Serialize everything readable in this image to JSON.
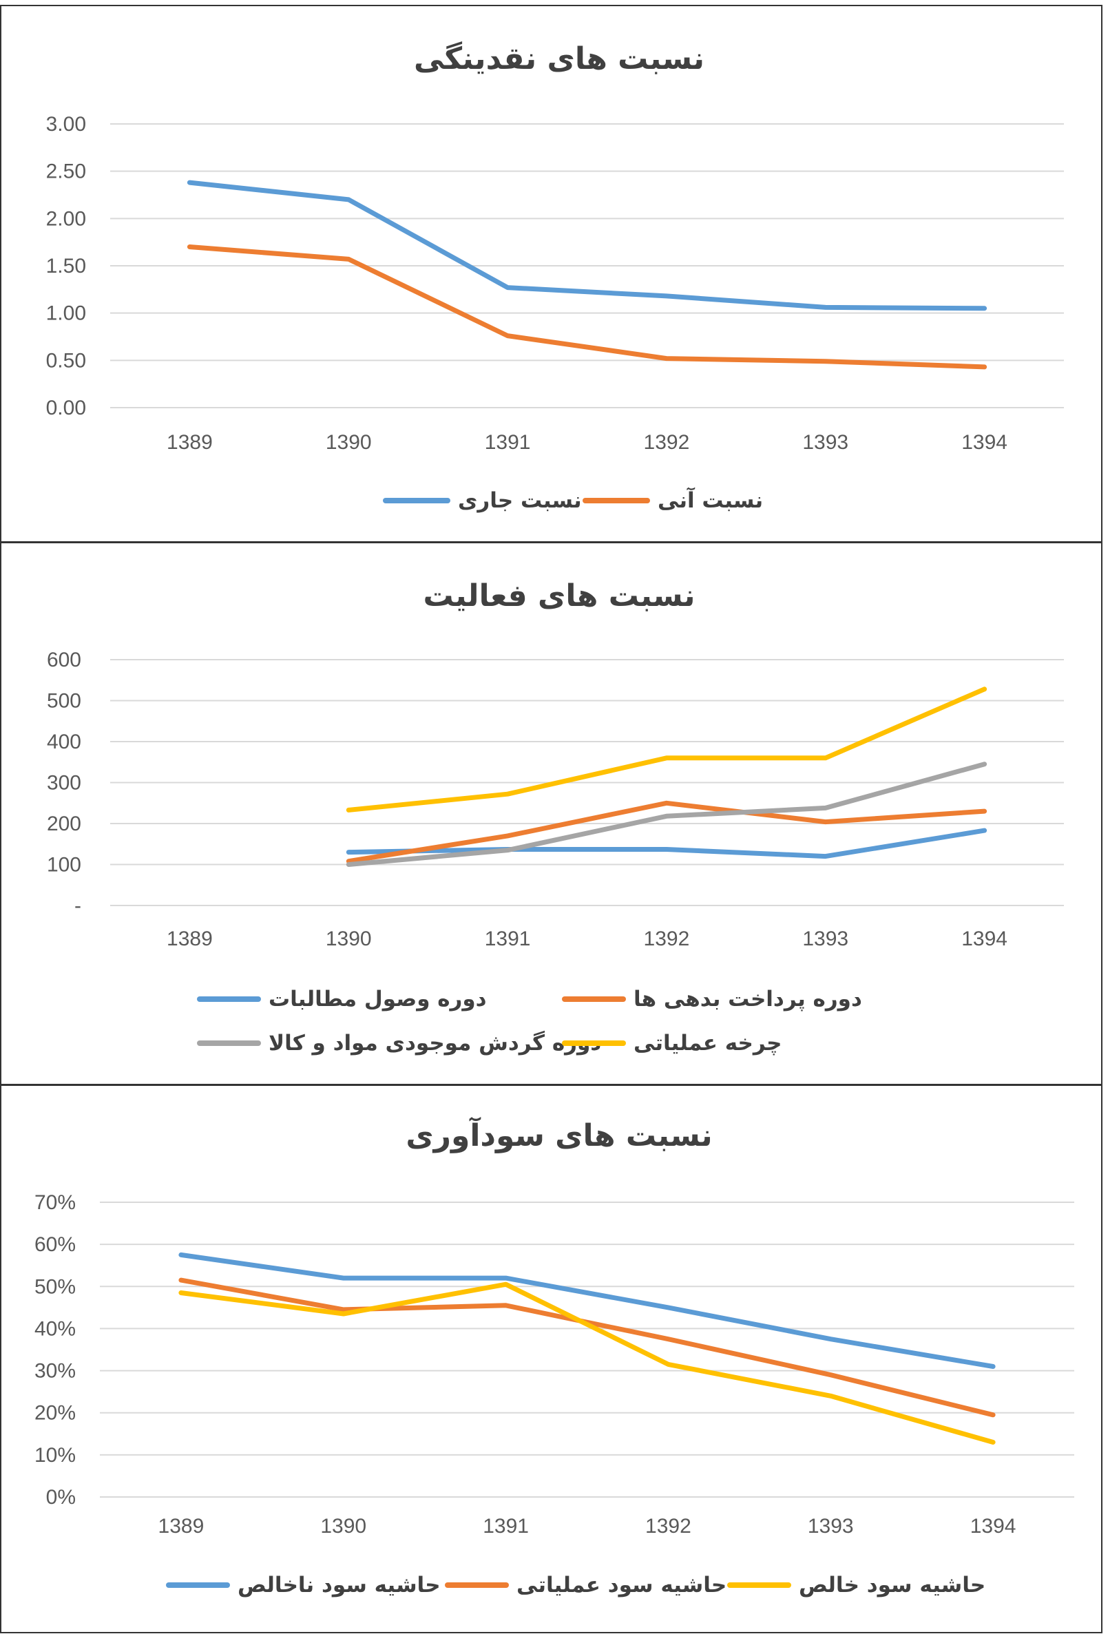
{
  "colors": {
    "blue": "#5B9BD5",
    "orange": "#ED7D31",
    "gray": "#A5A5A5",
    "yellow": "#FFC000",
    "grid": "#D9D9D9",
    "text": "#595959"
  },
  "chart_data": [
    {
      "type": "line",
      "title": "نسبت های نقدینگی",
      "xlabel": "",
      "ylabel": "",
      "categories": [
        "1389",
        "1390",
        "1391",
        "1392",
        "1393",
        "1394"
      ],
      "y_ticks": [
        "3.00",
        "2.50",
        "2.00",
        "1.50",
        "1.00",
        "0.50",
        "0.00"
      ],
      "ylim": [
        0,
        3
      ],
      "grid": true,
      "legend_position": "bottom",
      "series": [
        {
          "name": "نسبت جاری",
          "color": "#5B9BD5",
          "values": [
            2.38,
            2.2,
            1.27,
            1.18,
            1.06,
            1.05
          ]
        },
        {
          "name": "نسبت آنی",
          "color": "#ED7D31",
          "values": [
            1.7,
            1.57,
            0.76,
            0.52,
            0.49,
            0.43
          ]
        }
      ]
    },
    {
      "type": "line",
      "title": "نسبت های فعالیت",
      "xlabel": "",
      "ylabel": "",
      "categories": [
        "1389",
        "1390",
        "1391",
        "1392",
        "1393",
        "1394"
      ],
      "y_ticks": [
        "600",
        "500",
        "400",
        "300",
        "200",
        "100",
        "-"
      ],
      "ylim": [
        0,
        600
      ],
      "grid": true,
      "legend_position": "bottom",
      "series": [
        {
          "name": "دوره وصول مطالبات",
          "color": "#5B9BD5",
          "values": [
            null,
            130,
            137,
            137,
            120,
            183
          ]
        },
        {
          "name": "دوره پرداخت بدهی ها",
          "color": "#ED7D31",
          "values": [
            null,
            108,
            170,
            250,
            204,
            230
          ]
        },
        {
          "name": "دوره گردش موجودی مواد و کالا",
          "color": "#A5A5A5",
          "values": [
            null,
            100,
            135,
            218,
            238,
            345
          ]
        },
        {
          "name": "چرخه عملیاتی",
          "color": "#FFC000",
          "values": [
            null,
            233,
            272,
            360,
            360,
            528
          ]
        }
      ]
    },
    {
      "type": "line",
      "title": "نسبت های سودآوری",
      "xlabel": "",
      "ylabel": "",
      "categories": [
        "1389",
        "1390",
        "1391",
        "1392",
        "1393",
        "1394"
      ],
      "y_ticks": [
        "70%",
        "60%",
        "50%",
        "40%",
        "30%",
        "20%",
        "10%",
        "0%"
      ],
      "ylim": [
        0,
        70
      ],
      "grid": true,
      "legend_position": "bottom",
      "series": [
        {
          "name": "حاشیه سود ناخالص",
          "color": "#5B9BD5",
          "values": [
            57.5,
            52,
            52,
            45,
            37.5,
            31
          ]
        },
        {
          "name": "حاشیه سود عملیاتی",
          "color": "#ED7D31",
          "values": [
            51.5,
            44.5,
            45.5,
            37.5,
            29,
            19.5
          ]
        },
        {
          "name": "حاشیه سود خالص",
          "color": "#FFC000",
          "values": [
            48.5,
            43.5,
            50.5,
            31.5,
            24,
            13
          ]
        }
      ]
    }
  ]
}
